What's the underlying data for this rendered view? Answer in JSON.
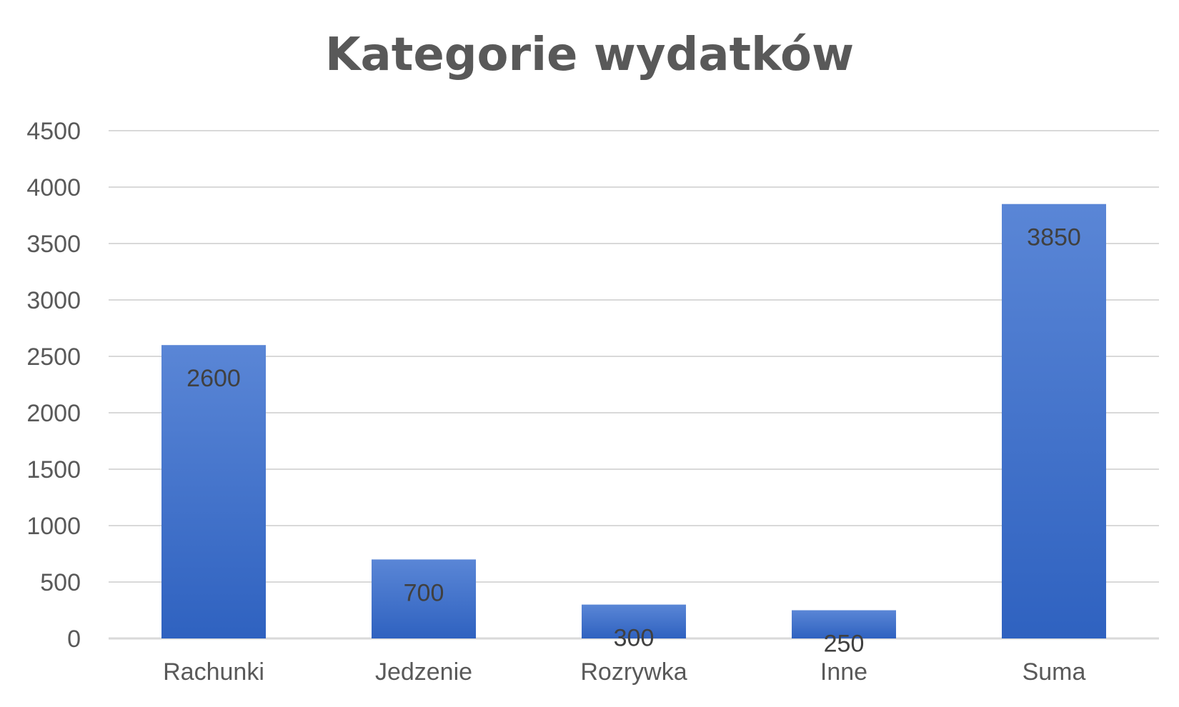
{
  "chart_data": {
    "type": "bar",
    "title": "Kategorie wydatków",
    "xlabel": "",
    "ylabel": "",
    "categories": [
      "Rachunki",
      "Jedzenie",
      "Rozrywka",
      "Inne",
      "Suma"
    ],
    "values": [
      2600,
      700,
      300,
      250,
      3850
    ],
    "data_labels": [
      "2600",
      "700",
      "300",
      "250",
      "3850"
    ],
    "ylim": [
      0,
      4500
    ],
    "yticks": [
      0,
      500,
      1000,
      1500,
      2000,
      2500,
      3000,
      3500,
      4000,
      4500
    ],
    "grid": true,
    "legend": "none",
    "colors": {
      "bar_top": "#5A86D6",
      "bar_bottom": "#2F62C0",
      "grid": "#D9D9D9",
      "text": "#595959"
    }
  }
}
